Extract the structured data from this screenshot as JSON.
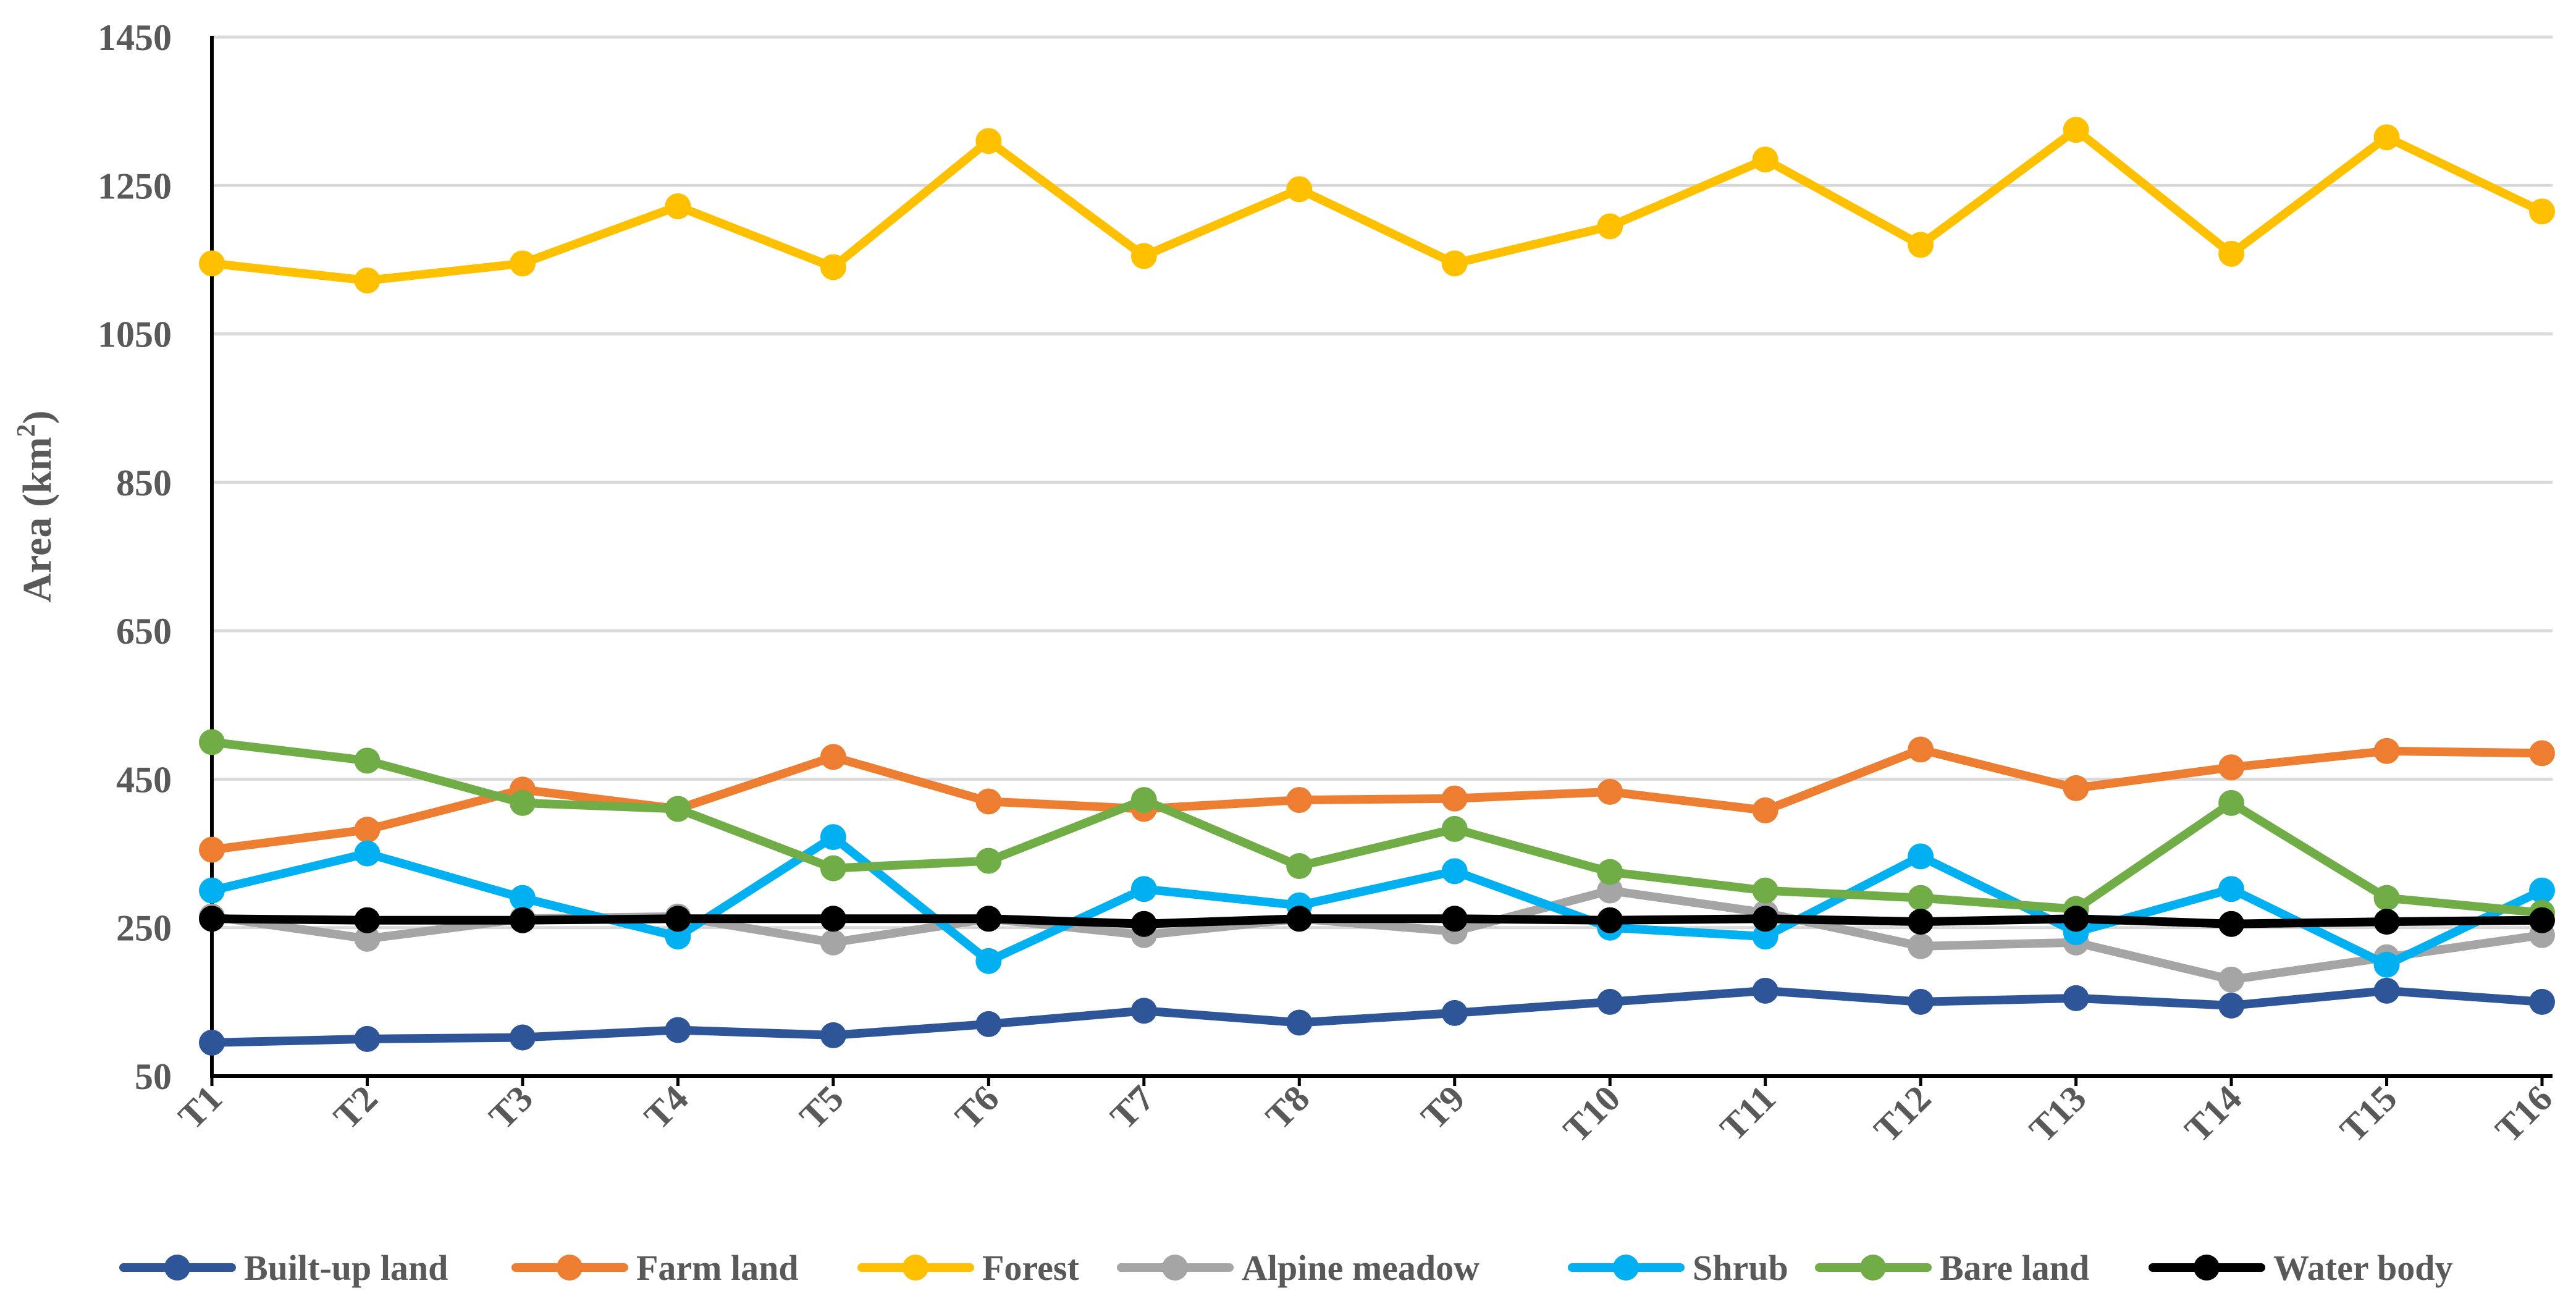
{
  "chart_data": {
    "type": "line",
    "title": "",
    "xlabel": "",
    "ylabel": "Area (km",
    "ylabel_sup": "2",
    "ylabel_close": ")",
    "ylim": [
      50,
      1450
    ],
    "yticks": [
      50,
      250,
      450,
      650,
      850,
      1050,
      1250,
      1450
    ],
    "grid": true,
    "legend_position": "bottom",
    "categories": [
      "T1",
      "T2",
      "T3",
      "T4",
      "T5",
      "T6",
      "T7",
      "T8",
      "T9",
      "T10",
      "T11",
      "T12",
      "T13",
      "T14",
      "T15",
      "T16"
    ],
    "series": [
      {
        "name": "Built-up land",
        "color": "#2E5597",
        "values": [
          95,
          100,
          102,
          112,
          105,
          120,
          138,
          122,
          135,
          150,
          165,
          150,
          155,
          145,
          165,
          150
        ]
      },
      {
        "name": "Farm land",
        "color": "#ED7D31",
        "values": [
          355,
          382,
          436,
          410,
          480,
          420,
          410,
          422,
          424,
          433,
          408,
          490,
          438,
          466,
          488,
          485
        ]
      },
      {
        "name": "Forest",
        "color": "#FFC000",
        "values": [
          1145,
          1122,
          1145,
          1222,
          1140,
          1310,
          1155,
          1245,
          1145,
          1195,
          1285,
          1170,
          1325,
          1158,
          1315,
          1215
        ]
      },
      {
        "name": "Alpine meadow",
        "color": "#A5A5A5",
        "values": [
          265,
          235,
          262,
          265,
          230,
          262,
          240,
          262,
          245,
          300,
          270,
          225,
          230,
          180,
          210,
          240
        ]
      },
      {
        "name": "Shrub",
        "color": "#00B0F0",
        "values": [
          300,
          350,
          290,
          238,
          372,
          205,
          302,
          280,
          326,
          250,
          238,
          346,
          244,
          302,
          200,
          300
        ]
      },
      {
        "name": "Bare land",
        "color": "#70AD47",
        "values": [
          500,
          475,
          418,
          410,
          330,
          340,
          422,
          333,
          383,
          325,
          300,
          290,
          275,
          418,
          290,
          270
        ]
      },
      {
        "name": "Water body",
        "color": "#000000",
        "values": [
          262,
          260,
          260,
          262,
          262,
          262,
          255,
          262,
          262,
          260,
          262,
          258,
          262,
          255,
          258,
          260
        ]
      }
    ]
  }
}
